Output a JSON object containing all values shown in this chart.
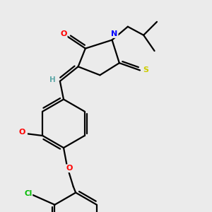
{
  "background_color": "#ebebeb",
  "atom_colors": {
    "C": "#000000",
    "H": "#5fa8a8",
    "O": "#ff0000",
    "N": "#0000ff",
    "S": "#cccc00",
    "Cl": "#00bb00"
  },
  "lw": 1.6
}
